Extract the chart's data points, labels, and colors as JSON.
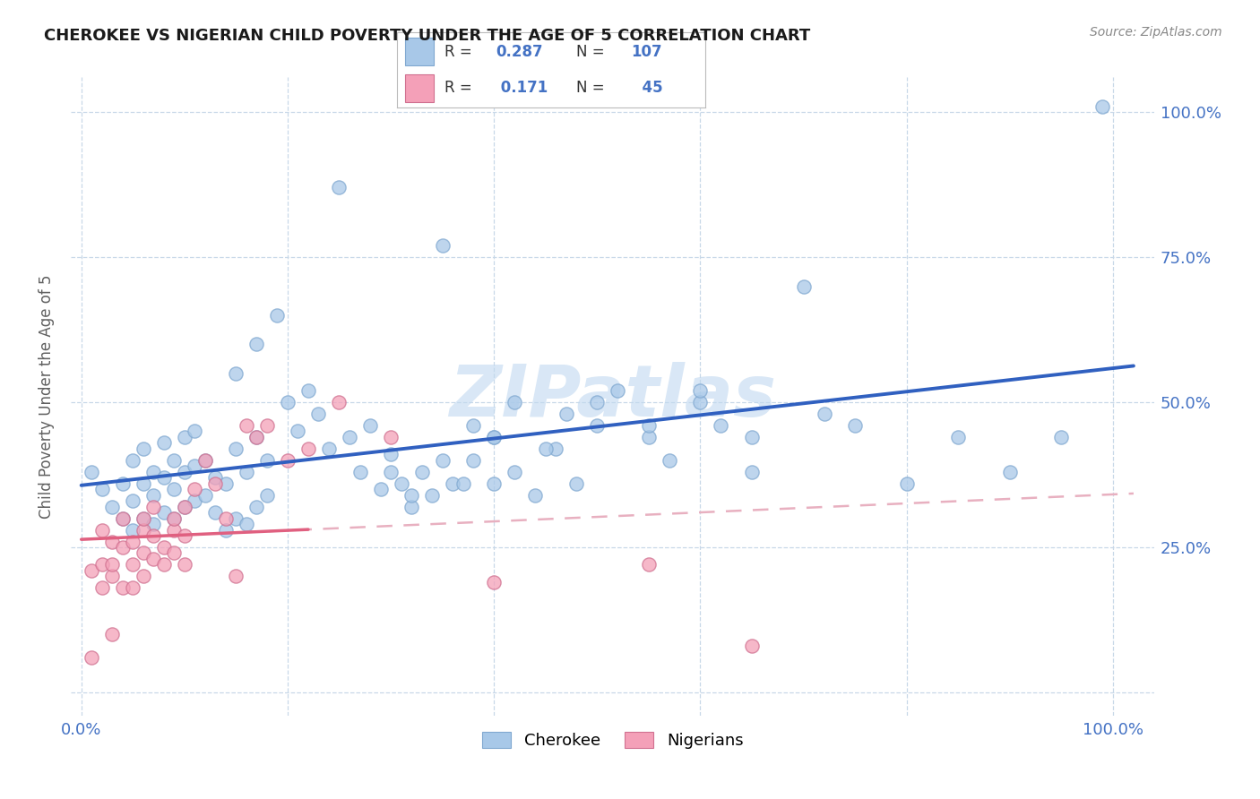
{
  "title": "CHEROKEE VS NIGERIAN CHILD POVERTY UNDER THE AGE OF 5 CORRELATION CHART",
  "source": "Source: ZipAtlas.com",
  "ylabel": "Child Poverty Under the Age of 5",
  "cherokee_R": 0.287,
  "cherokee_N": 107,
  "nigerian_R": 0.171,
  "nigerian_N": 45,
  "cherokee_color": "#a8c8e8",
  "nigerian_color": "#f4a0b8",
  "cherokee_line_color": "#3060c0",
  "nigerian_line_color": "#e06080",
  "nigerian_dash_color": "#e8b0c0",
  "watermark_color": "#c0d8f0",
  "grid_color": "#c8d8e8",
  "tick_color": "#4472c4",
  "ylabel_color": "#606060",
  "title_color": "#1a1a1a",
  "source_color": "#888888",
  "bg_color": "#ffffff"
}
